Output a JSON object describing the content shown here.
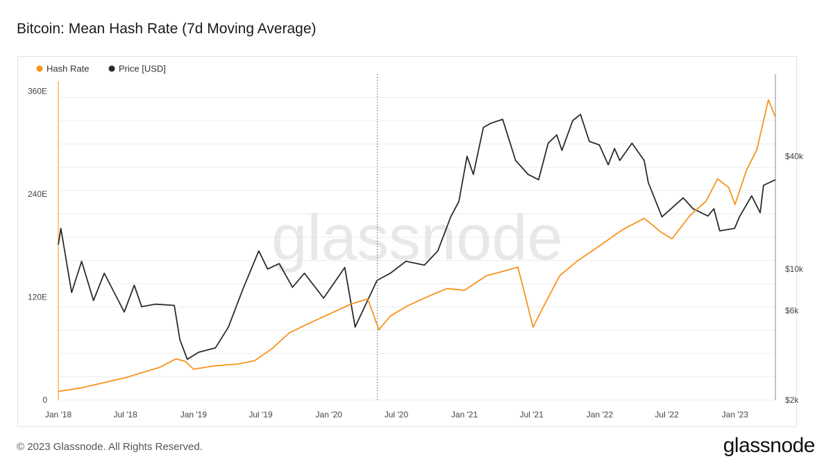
{
  "page": {
    "title": "Bitcoin: Mean Hash Rate (7d Moving Average)",
    "footer": "© 2023 Glassnode. All Rights Reserved.",
    "logo": "glassnode",
    "watermark": "glassnode"
  },
  "colors": {
    "hash_rate": "#f7931a",
    "price": "#2b2b2b",
    "grid": "#ececec"
  },
  "chart_data": {
    "type": "line",
    "title": "Bitcoin: Mean Hash Rate (7d Moving Average)",
    "legend": [
      {
        "name": "Hash Rate",
        "color": "#f7931a"
      },
      {
        "name": "Price [USD]",
        "color": "#2b2b2b"
      }
    ],
    "legend_position": "top-left",
    "x_ticks": [
      "Jan '18",
      "Jul '18",
      "Jan '19",
      "Jul '19",
      "Jan '20",
      "Jul '20",
      "Jan '21",
      "Jul '21",
      "Jan '22",
      "Jul '22",
      "Jan '23"
    ],
    "x_range": [
      "2018-01-01",
      "2023-04-20"
    ],
    "y_left": {
      "ticks": [
        "0",
        "120E",
        "240E",
        "360E"
      ],
      "values": [
        0,
        120,
        240,
        360
      ],
      "unit": "EH/s",
      "range": [
        0,
        380
      ]
    },
    "y_right": {
      "ticks": [
        "$2k",
        "$6k",
        "$10k",
        "$40k"
      ],
      "values": [
        2000,
        6000,
        10000,
        40000
      ],
      "scale": "log"
    },
    "grid": true,
    "marker_date": "2020-05-11",
    "series": [
      {
        "name": "Hash Rate",
        "axis": "left",
        "x": [
          "2018-01-01",
          "2018-03-01",
          "2018-05-01",
          "2018-07-01",
          "2018-08-15",
          "2018-10-01",
          "2018-11-15",
          "2018-12-10",
          "2019-01-01",
          "2019-03-01",
          "2019-05-01",
          "2019-06-15",
          "2019-08-01",
          "2019-09-15",
          "2019-11-01",
          "2020-01-01",
          "2020-03-01",
          "2020-04-15",
          "2020-05-15",
          "2020-06-15",
          "2020-08-01",
          "2020-10-01",
          "2020-11-15",
          "2021-01-01",
          "2021-03-01",
          "2021-05-01",
          "2021-05-25",
          "2021-06-15",
          "2021-07-05",
          "2021-08-01",
          "2021-09-15",
          "2021-11-01",
          "2022-01-01",
          "2022-03-01",
          "2022-05-01",
          "2022-06-15",
          "2022-07-15",
          "2022-09-01",
          "2022-10-15",
          "2022-11-15",
          "2022-12-15",
          "2023-01-01",
          "2023-02-01",
          "2023-03-01",
          "2023-04-01",
          "2023-04-20"
        ],
        "values": [
          10,
          14,
          20,
          26,
          32,
          38,
          48,
          45,
          36,
          40,
          42,
          46,
          60,
          78,
          88,
          100,
          112,
          118,
          82,
          98,
          110,
          122,
          130,
          128,
          145,
          152,
          155,
          120,
          85,
          108,
          145,
          162,
          180,
          198,
          212,
          196,
          188,
          215,
          232,
          258,
          248,
          228,
          268,
          292,
          350,
          330
        ]
      },
      {
        "name": "Price [USD]",
        "axis": "right",
        "x": [
          "2018-01-01",
          "2018-01-08",
          "2018-02-06",
          "2018-03-05",
          "2018-04-06",
          "2018-05-05",
          "2018-06-28",
          "2018-07-25",
          "2018-08-14",
          "2018-09-20",
          "2018-11-10",
          "2018-11-25",
          "2018-12-15",
          "2019-01-15",
          "2019-03-01",
          "2019-04-05",
          "2019-05-15",
          "2019-06-26",
          "2019-07-20",
          "2019-08-20",
          "2019-09-25",
          "2019-10-27",
          "2019-12-18",
          "2020-02-13",
          "2020-03-12",
          "2020-03-16",
          "2020-05-10",
          "2020-06-15",
          "2020-07-27",
          "2020-09-15",
          "2020-10-21",
          "2020-11-25",
          "2020-12-17",
          "2021-01-08",
          "2021-01-25",
          "2021-02-21",
          "2021-03-13",
          "2021-04-14",
          "2021-05-19",
          "2021-06-22",
          "2021-07-20",
          "2021-08-15",
          "2021-09-07",
          "2021-09-21",
          "2021-10-20",
          "2021-11-10",
          "2021-12-04",
          "2021-12-31",
          "2022-01-24",
          "2022-02-10",
          "2022-02-24",
          "2022-03-29",
          "2022-05-01",
          "2022-05-12",
          "2022-06-18",
          "2022-08-14",
          "2022-09-10",
          "2022-10-20",
          "2022-11-05",
          "2022-11-21",
          "2022-12-31",
          "2023-01-13",
          "2023-02-15",
          "2023-03-10",
          "2023-03-19",
          "2023-04-20"
        ],
        "values": [
          13500,
          16500,
          7500,
          11000,
          6800,
          9500,
          5900,
          8200,
          6300,
          6500,
          6400,
          4200,
          3300,
          3600,
          3800,
          4900,
          7900,
          12500,
          10000,
          10700,
          8000,
          9500,
          7000,
          10200,
          4900,
          5100,
          8700,
          9500,
          11000,
          10500,
          12500,
          19000,
          23000,
          40000,
          32000,
          57000,
          60000,
          63000,
          38000,
          32000,
          30000,
          47000,
          52000,
          43000,
          62000,
          67000,
          48000,
          46000,
          36000,
          44000,
          38000,
          47000,
          38000,
          29000,
          19000,
          24000,
          21000,
          19200,
          21000,
          16000,
          16500,
          19000,
          24600,
          20000,
          28000,
          30000
        ]
      }
    ]
  }
}
